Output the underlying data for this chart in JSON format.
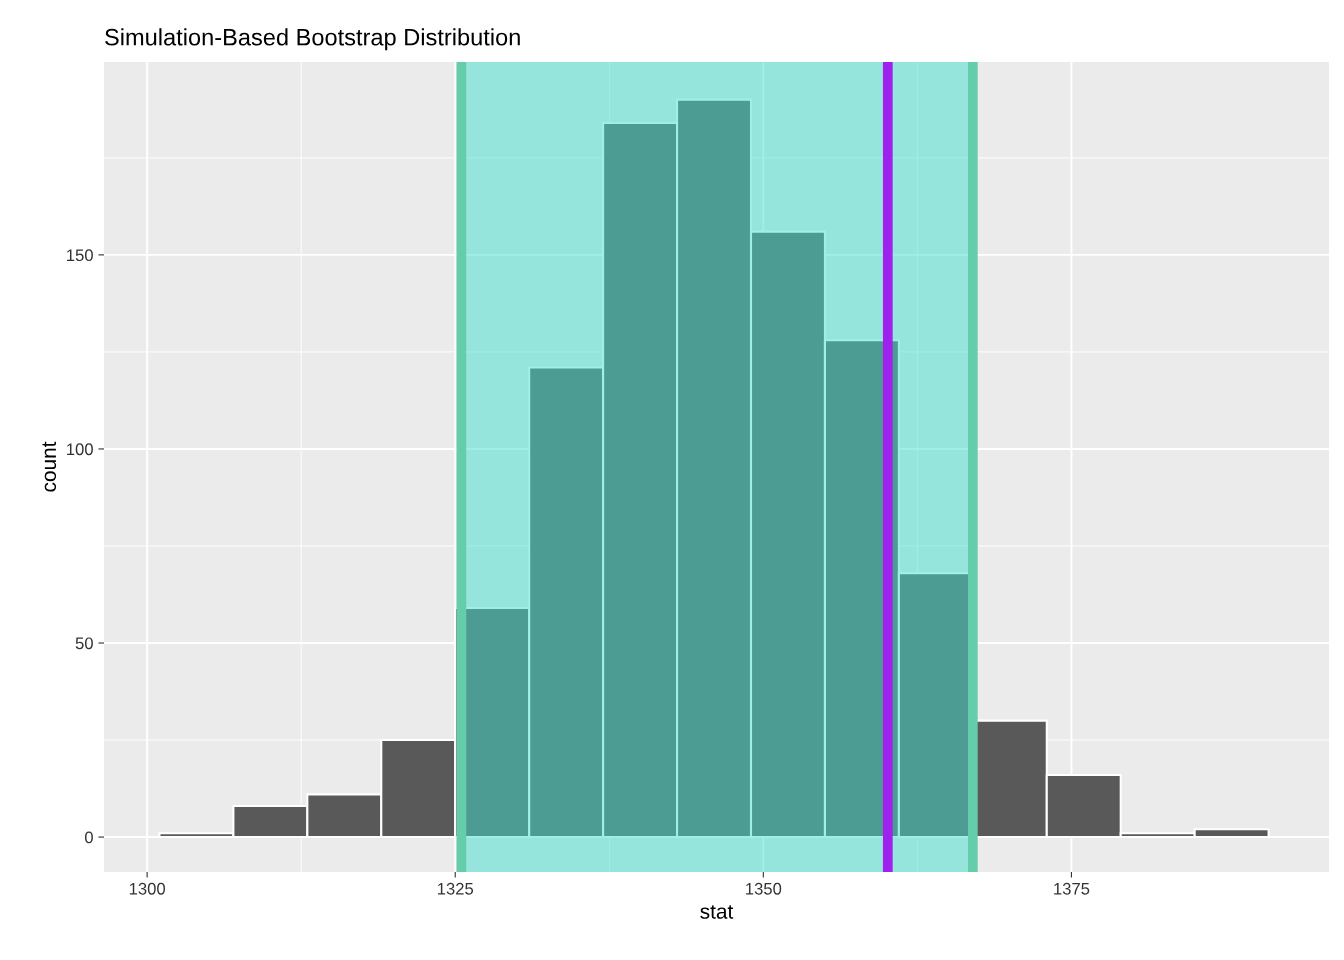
{
  "chart_data": {
    "type": "histogram",
    "title": "Simulation-Based Bootstrap Distribution",
    "xlabel": "stat",
    "ylabel": "count",
    "bins": [
      1301,
      1307,
      1313,
      1319,
      1325,
      1331,
      1337,
      1343,
      1349,
      1355,
      1361,
      1367,
      1373,
      1379,
      1385,
      1391
    ],
    "values": [
      1,
      8,
      11,
      25,
      59,
      121,
      184,
      190,
      156,
      128,
      68,
      30,
      16,
      1,
      2
    ],
    "color": "#595959",
    "xlim": [
      1296.5,
      1395.9
    ],
    "ylim": [
      -9,
      199.7
    ],
    "xticks": [
      1300,
      1325,
      1350,
      1375
    ],
    "yticks": [
      0,
      50,
      100,
      150
    ],
    "grid": true,
    "bands": [
      {
        "axis": "x",
        "from": 1325.5,
        "to": 1367.0,
        "color": "#40e0d0"
      }
    ],
    "ref_lines": [
      {
        "axis": "x",
        "value": 1325.5,
        "color": "#66cdaa"
      },
      {
        "axis": "x",
        "value": 1367.0,
        "color": "#66cdaa"
      },
      {
        "axis": "x",
        "value": 1360.1,
        "color": "#a020f0"
      }
    ]
  }
}
